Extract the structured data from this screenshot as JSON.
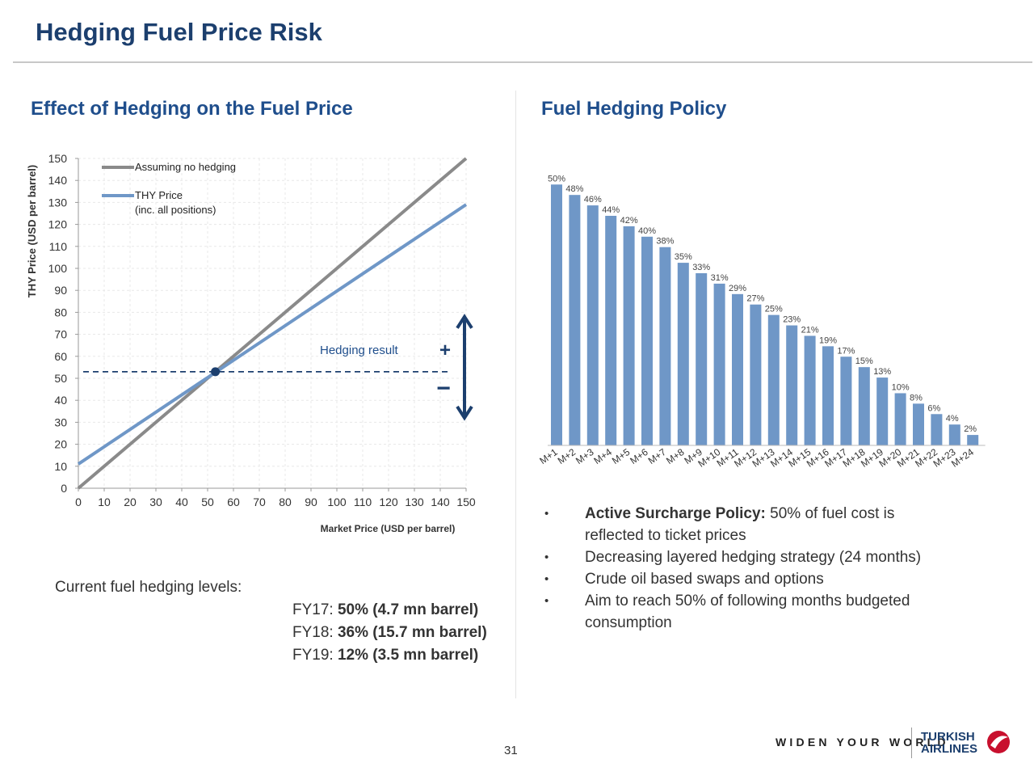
{
  "header": {
    "title": "Hedging Fuel Price Risk"
  },
  "left_section": {
    "title": "Effect of Hedging on the Fuel Price"
  },
  "right_section": {
    "title": "Fuel Hedging Policy"
  },
  "chart_data": [
    {
      "type": "line",
      "title": "",
      "xlabel": "Market Price (USD per barrel)",
      "ylabel": "THY Price (USD per barrel)",
      "xlim": [
        0,
        150
      ],
      "ylim": [
        0,
        150
      ],
      "xticks": [
        "0",
        "10",
        "20",
        "30",
        "40",
        "50",
        "60",
        "70",
        "80",
        "90",
        "100",
        "110",
        "120",
        "130",
        "140",
        "150"
      ],
      "yticks": [
        "0",
        "10",
        "20",
        "30",
        "40",
        "50",
        "60",
        "70",
        "80",
        "90",
        "100",
        "110",
        "120",
        "130",
        "140",
        "150"
      ],
      "grid": true,
      "legend_position": "top-left",
      "series": [
        {
          "name": "Assuming no hedging",
          "color": "#8a8a8a",
          "x": [
            0,
            150
          ],
          "y": [
            0,
            150
          ]
        },
        {
          "name": "THY Price",
          "name_line2": "(inc. all positions)",
          "color": "#6f97c7",
          "x": [
            0,
            150
          ],
          "y": [
            11,
            129
          ]
        }
      ],
      "hedge_point": {
        "x": 53,
        "y": 53
      },
      "annotation": {
        "text": "Hedging result",
        "plus_symbol": "+",
        "minus_symbol": "−",
        "arrow_top_y": 78,
        "arrow_bottom_y": 32
      }
    },
    {
      "type": "bar",
      "title": "",
      "bar_color": "#6f97c7",
      "ylim": [
        0,
        55
      ],
      "categories": [
        "M+1",
        "M+2",
        "M+3",
        "M+4",
        "M+5",
        "M+6",
        "M+7",
        "M+8",
        "M+9",
        "M+10",
        "M+11",
        "M+12",
        "M+13",
        "M+14",
        "M+15",
        "M+16",
        "M+17",
        "M+18",
        "M+19",
        "M+20",
        "M+21",
        "M+22",
        "M+23",
        "M+24"
      ],
      "values": [
        50,
        48,
        46,
        44,
        42,
        40,
        38,
        35,
        33,
        31,
        29,
        27,
        25,
        23,
        21,
        19,
        17,
        15,
        13,
        10,
        8,
        6,
        4,
        2
      ],
      "labels": [
        "50%",
        "48%",
        "46%",
        "44%",
        "42%",
        "40%",
        "38%",
        "35%",
        "33%",
        "31%",
        "29%",
        "27%",
        "25%",
        "23%",
        "21%",
        "19%",
        "17%",
        "15%",
        "13%",
        "10%",
        "8%",
        "6%",
        "4%",
        "2%"
      ]
    }
  ],
  "hedging_levels": {
    "heading": "Current fuel hedging levels:",
    "rows": [
      {
        "label": "FY17: ",
        "value": "50% (4.7 mn barrel)"
      },
      {
        "label": "FY18: ",
        "value": "36% (15.7 mn barrel)"
      },
      {
        "label": "FY19: ",
        "value": "12% (3.5 mn barrel)"
      }
    ]
  },
  "policy_bullets": [
    {
      "bold": "Active Surcharge Policy:",
      "text": " 50% of fuel cost is reflected  to ticket prices"
    },
    {
      "bold": "",
      "text": "Decreasing layered hedging strategy (24 months)"
    },
    {
      "bold": "",
      "text": "Crude oil based swaps and options"
    },
    {
      "bold": "",
      "text": "Aim to reach 50% of following months budgeted consumption"
    }
  ],
  "bullet_symbol": "•",
  "footer": {
    "page_number": "31",
    "slogan": "WIDEN YOUR WORLD",
    "logo_line1": "TURKISH",
    "logo_line2": "AIRLINES",
    "logo_color": "#c8102e"
  }
}
